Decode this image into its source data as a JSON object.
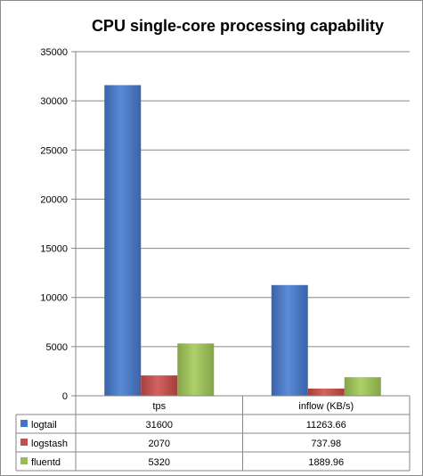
{
  "chart_data": {
    "type": "bar",
    "title": "CPU single-core processing capability",
    "categories": [
      "tps",
      "inflow (KB/s)"
    ],
    "series": [
      {
        "name": "logtail",
        "values": [
          31600,
          11263.66
        ],
        "value_labels": [
          "31600",
          "11263.66"
        ],
        "color": "#4472c4"
      },
      {
        "name": "logstash",
        "values": [
          2070,
          737.98
        ],
        "value_labels": [
          "2070",
          "737.98"
        ],
        "color": "#c0504d"
      },
      {
        "name": "fluentd",
        "values": [
          5320,
          1889.96
        ],
        "value_labels": [
          "5320",
          "1889.96"
        ],
        "color": "#9bbb59"
      }
    ],
    "ylim": [
      0,
      35000
    ],
    "yticks": [
      0,
      5000,
      10000,
      15000,
      20000,
      25000,
      30000,
      35000
    ],
    "ytick_labels": [
      "0",
      "5000",
      "10000",
      "15000",
      "20000",
      "25000",
      "30000",
      "35000"
    ],
    "grid": true,
    "legend": "data table below chart"
  }
}
